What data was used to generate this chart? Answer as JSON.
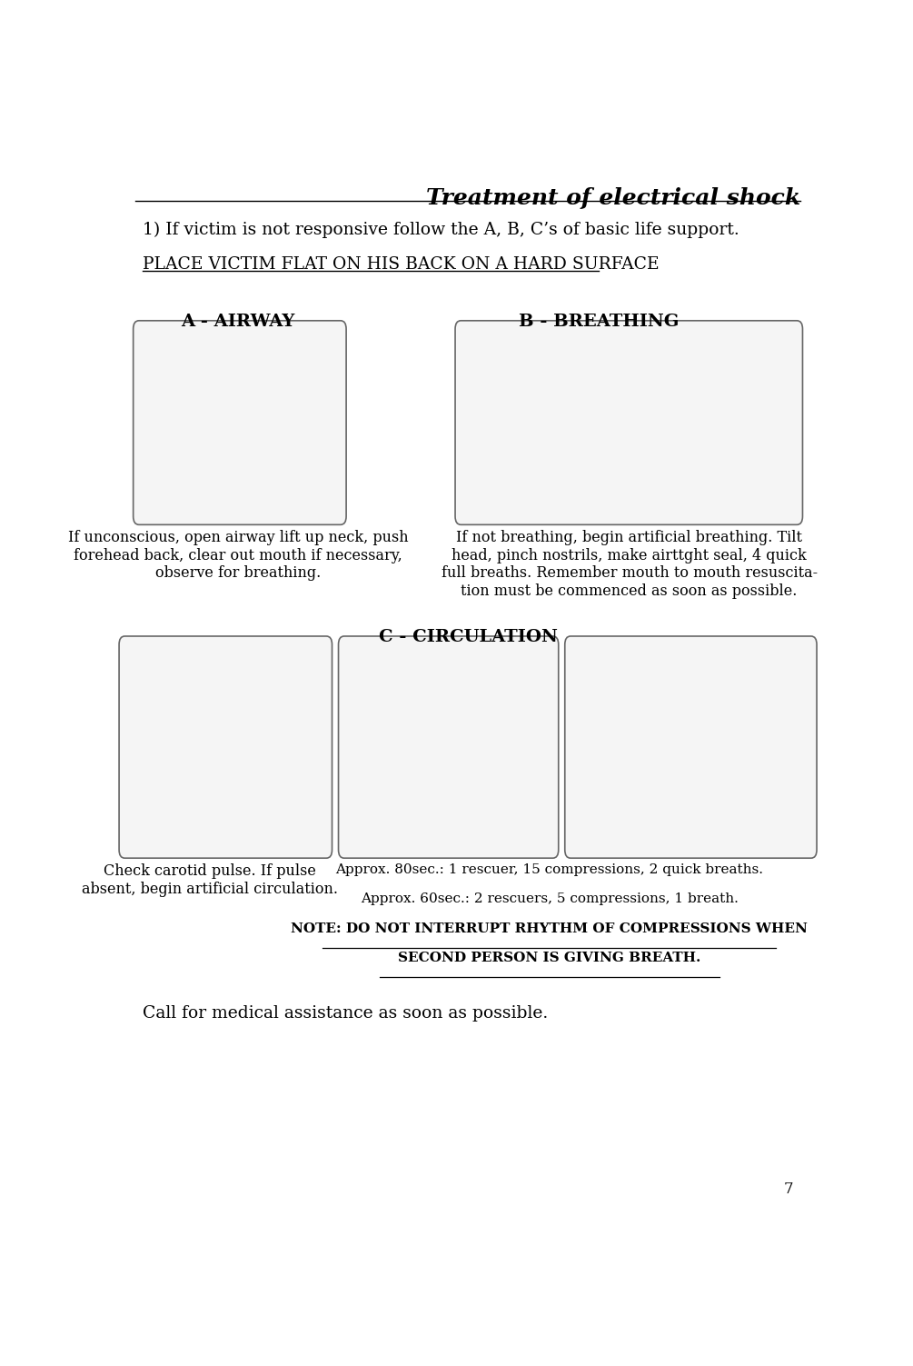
{
  "bg_color": "#ffffff",
  "title": "Treatment of electrical shock",
  "title_fontsize": 18,
  "title_color": "#000000",
  "page_number": "7",
  "intro_text": "1) If victim is not responsive follow the A, B, C’s of basic life support.",
  "place_text": "PLACE VICTIM FLAT ON HIS BACK ON A HARD SURFACE",
  "section_a_title": "A - AIRWAY",
  "section_b_title": "B - BREATHING",
  "section_c_title": "C - CIRCULATION",
  "airway_text": "If unconscious, open airway lift up neck, push\nforehead back, clear out mouth if necessary,\nobserve for breathing.",
  "breathing_text": "If not breathing, begin artificial breathing. Tilt\nhead, pinch nostrils, make airttght seal, 4 quick\nfull breaths. Remember mouth to mouth resuscita-\ntion must be commenced as soon as possible.",
  "circulation_text1": "Check carotid pulse. If pulse\nabsent, begin artificial circulation.",
  "circulation_text2_lines": [
    "Approx. 80sec.: 1 rescuer, 15 compressions, 2 quick breaths.",
    "Approx. 60sec.: 2 rescuers, 5 compressions, 1 breath.",
    "NOTE: DO NOT INTERRUPT RHYTHM OF COMPRESSIONS WHEN",
    "SECOND PERSON IS GIVING BREATH."
  ],
  "call_text": "Call for medical assistance as soon as possible."
}
